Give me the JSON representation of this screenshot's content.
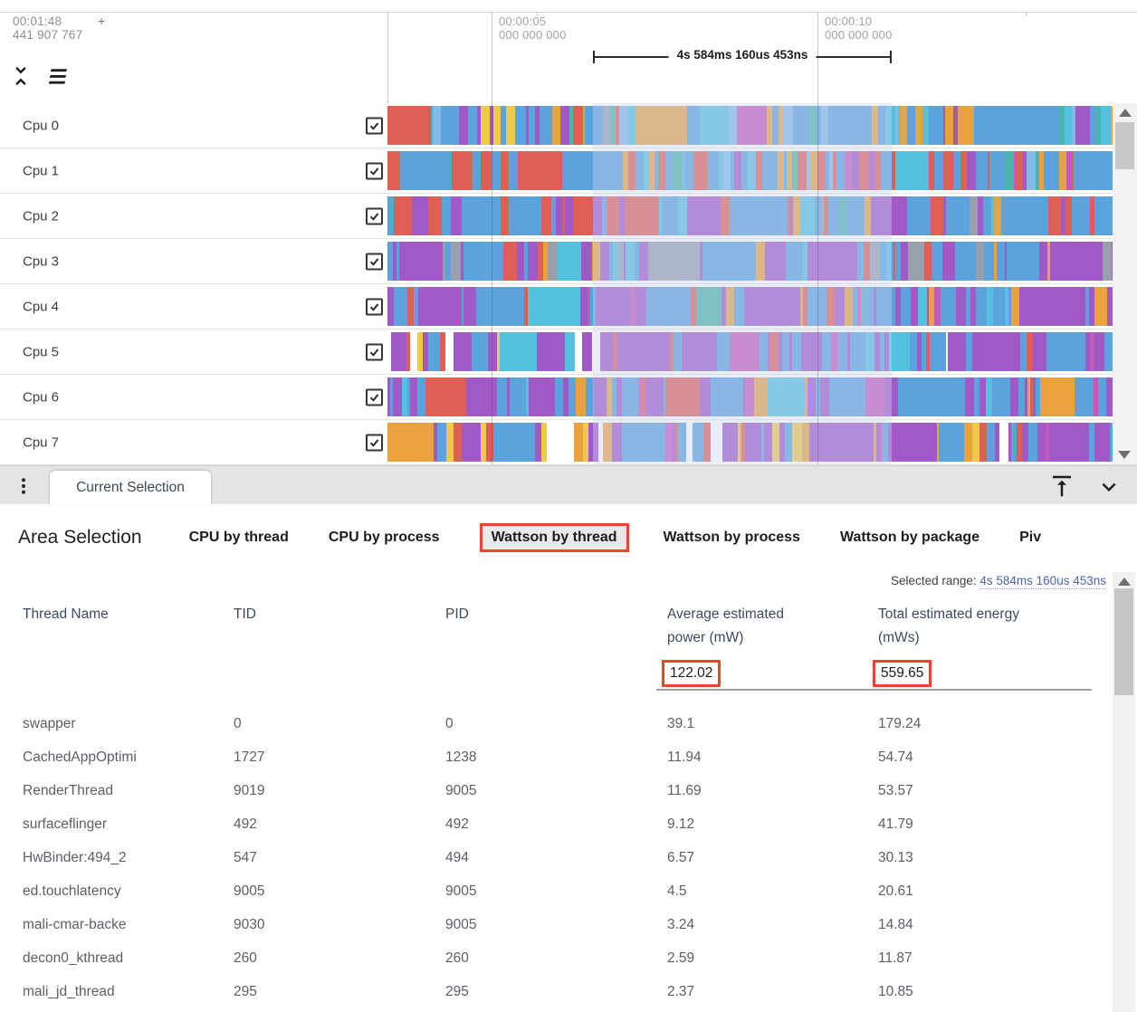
{
  "header": {
    "time_primary": "00:01:48",
    "time_plus": "+",
    "time_secondary": "441 907 767"
  },
  "ruler": {
    "ticks": [
      {
        "time": "00:00:05",
        "frac": "000 000 000"
      },
      {
        "time": "00:00:10",
        "frac": "000 000 000"
      }
    ],
    "span_label": "4s 584ms 160us 453ns"
  },
  "tracks": {
    "palette": {
      "blue": "#5BA3DC",
      "blue2": "#82BBE8",
      "purple": "#A159C8",
      "magenta": "#C45AB8",
      "red": "#DE6055",
      "orange": "#E9A23E",
      "yellow": "#EFC94C",
      "teal": "#4BB5A8",
      "cyan": "#55C0DF",
      "gray": "#97A0AB",
      "white": "#FFFFFF"
    },
    "cpus": [
      {
        "name": "Cpu 0",
        "checked": true,
        "mix": [
          [
            "blue",
            34
          ],
          [
            "blue2",
            10
          ],
          [
            "purple",
            16
          ],
          [
            "orange",
            12
          ],
          [
            "teal",
            7
          ],
          [
            "cyan",
            6
          ],
          [
            "red",
            6
          ],
          [
            "magenta",
            4
          ],
          [
            "gray",
            2
          ],
          [
            "yellow",
            3
          ]
        ]
      },
      {
        "name": "Cpu 1",
        "checked": true,
        "mix": [
          [
            "red",
            26
          ],
          [
            "blue",
            34
          ],
          [
            "blue2",
            8
          ],
          [
            "purple",
            14
          ],
          [
            "orange",
            6
          ],
          [
            "teal",
            4
          ],
          [
            "cyan",
            4
          ],
          [
            "magenta",
            4
          ]
        ]
      },
      {
        "name": "Cpu 2",
        "checked": true,
        "mix": [
          [
            "red",
            24
          ],
          [
            "blue",
            30
          ],
          [
            "purple",
            26
          ],
          [
            "orange",
            8
          ],
          [
            "cyan",
            5
          ],
          [
            "teal",
            4
          ],
          [
            "gray",
            3
          ]
        ]
      },
      {
        "name": "Cpu 3",
        "checked": true,
        "mix": [
          [
            "blue",
            36
          ],
          [
            "purple",
            30
          ],
          [
            "red",
            8
          ],
          [
            "gray",
            9
          ],
          [
            "orange",
            7
          ],
          [
            "cyan",
            5
          ],
          [
            "magenta",
            5
          ]
        ]
      },
      {
        "name": "Cpu 4",
        "checked": true,
        "mix": [
          [
            "blue",
            38
          ],
          [
            "purple",
            28
          ],
          [
            "orange",
            9
          ],
          [
            "red",
            7
          ],
          [
            "cyan",
            7
          ],
          [
            "teal",
            5
          ],
          [
            "magenta",
            6
          ]
        ]
      },
      {
        "name": "Cpu 5",
        "checked": true,
        "mix": [
          [
            "purple",
            38
          ],
          [
            "blue",
            30
          ],
          [
            "white",
            14
          ],
          [
            "yellow",
            4
          ],
          [
            "red",
            4
          ],
          [
            "cyan",
            5
          ],
          [
            "magenta",
            5
          ]
        ]
      },
      {
        "name": "Cpu 6",
        "checked": true,
        "mix": [
          [
            "purple",
            42
          ],
          [
            "blue",
            34
          ],
          [
            "orange",
            7
          ],
          [
            "red",
            6
          ],
          [
            "cyan",
            5
          ],
          [
            "magenta",
            6
          ]
        ]
      },
      {
        "name": "Cpu 7",
        "checked": true,
        "mix": [
          [
            "purple",
            36
          ],
          [
            "blue",
            26
          ],
          [
            "white",
            11
          ],
          [
            "yellow",
            7
          ],
          [
            "orange",
            6
          ],
          [
            "red",
            7
          ],
          [
            "cyan",
            4
          ],
          [
            "magenta",
            3
          ]
        ]
      }
    ]
  },
  "selection_panel": {
    "tab_label": "Current Selection"
  },
  "area_selection": {
    "title": "Area Selection",
    "tabs": [
      {
        "label": "CPU by thread",
        "selected": false
      },
      {
        "label": "CPU by process",
        "selected": false
      },
      {
        "label": "Wattson by thread",
        "selected": true
      },
      {
        "label": "Wattson by process",
        "selected": false
      },
      {
        "label": "Wattson by package",
        "selected": false
      },
      {
        "label": "Piv",
        "selected": false
      }
    ]
  },
  "table": {
    "selected_range_label": "Selected range:",
    "selected_range_value": "4s 584ms 160us 453ns",
    "columns": [
      "Thread Name",
      "TID",
      "PID",
      "Average estimated power (mW)",
      "Total estimated energy (mWs)"
    ],
    "summary": {
      "avg_power": "122.02",
      "total_energy": "559.65"
    },
    "rows": [
      [
        "swapper",
        "0",
        "0",
        "39.1",
        "179.24"
      ],
      [
        "CachedAppOptimi",
        "1727",
        "1238",
        "11.94",
        "54.74"
      ],
      [
        "RenderThread",
        "9019",
        "9005",
        "11.69",
        "53.57"
      ],
      [
        "surfaceflinger",
        "492",
        "492",
        "9.12",
        "41.79"
      ],
      [
        "HwBinder:494_2",
        "547",
        "494",
        "6.57",
        "30.13"
      ],
      [
        "ed.touchlatency",
        "9005",
        "9005",
        "4.5",
        "20.61"
      ],
      [
        "mali-cmar-backe",
        "9030",
        "9005",
        "3.24",
        "14.84"
      ],
      [
        "decon0_kthread",
        "260",
        "260",
        "2.59",
        "11.87"
      ],
      [
        "mali_jd_thread",
        "295",
        "295",
        "2.37",
        "10.85"
      ]
    ]
  },
  "colors": {
    "accent_highlight": "#E8472B",
    "link": "#5064AC",
    "selection_overlay": "#DFE4F4"
  }
}
